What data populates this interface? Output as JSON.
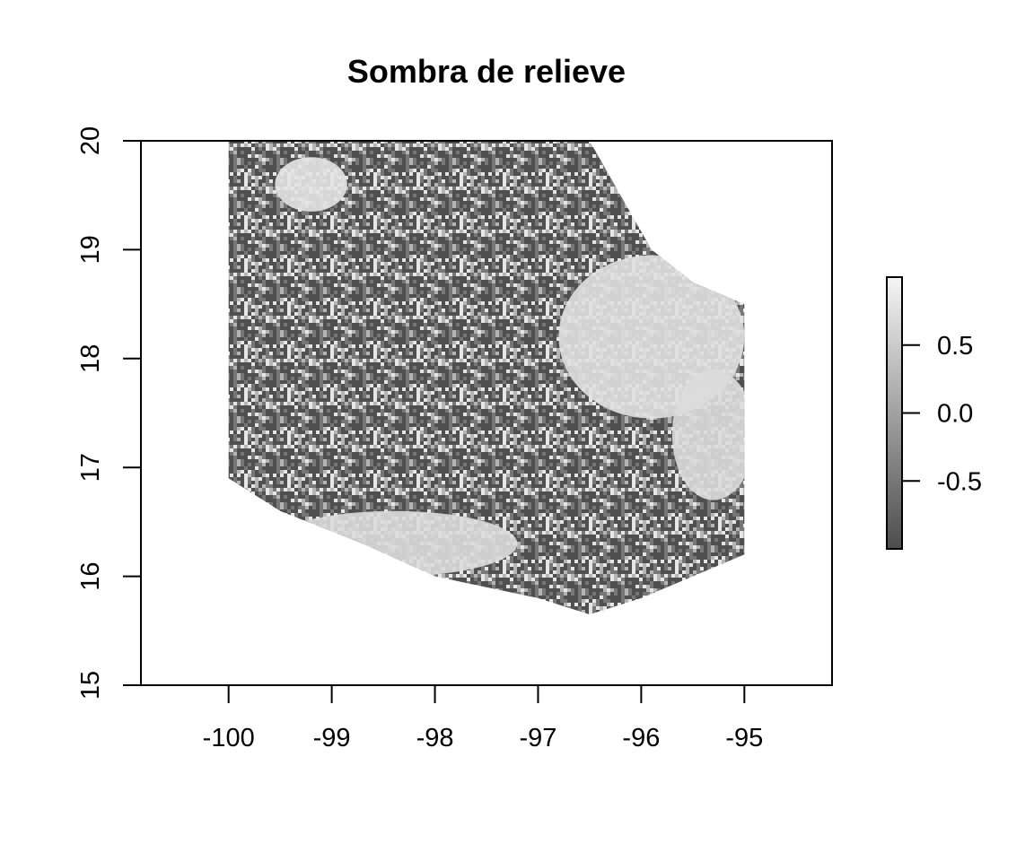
{
  "chart_data": {
    "type": "heatmap",
    "title": "Sombra de relieve",
    "xlabel": "",
    "ylabel": "",
    "xlim": [
      -100.85,
      -94.15
    ],
    "ylim": [
      15,
      20
    ],
    "x_ticks": [
      "-100",
      "-99",
      "-98",
      "-97",
      "-96",
      "-95"
    ],
    "x_tick_values": [
      -100,
      -99,
      -98,
      -97,
      -96,
      -95
    ],
    "y_ticks": [
      "15",
      "16",
      "17",
      "18",
      "19",
      "20"
    ],
    "y_tick_values": [
      15,
      16,
      17,
      18,
      19,
      20
    ],
    "value_range": [
      -1,
      1
    ],
    "colorbar_ticks": [
      "0.5",
      "0.0",
      "-0.5"
    ],
    "colorbar_tick_values": [
      0.5,
      0.0,
      -0.5
    ],
    "colormap": [
      "#4d4d4d",
      "#f5f5f5"
    ],
    "region_outline": [
      [
        -100.0,
        20.0
      ],
      [
        -96.5,
        20.0
      ],
      [
        -96.2,
        19.5
      ],
      [
        -95.9,
        19.0
      ],
      [
        -95.5,
        18.7
      ],
      [
        -95.0,
        18.5
      ],
      [
        -95.0,
        16.2
      ],
      [
        -95.5,
        16.0
      ],
      [
        -96.0,
        15.8
      ],
      [
        -96.5,
        15.65
      ],
      [
        -97.0,
        15.8
      ],
      [
        -98.0,
        16.0
      ],
      [
        -98.7,
        16.3
      ],
      [
        -99.5,
        16.6
      ],
      [
        -100.0,
        16.9
      ]
    ],
    "smooth_zones": [
      {
        "center": [
          -95.9,
          18.2
        ],
        "radius": [
          0.9,
          0.75
        ],
        "value": 0.75
      },
      {
        "center": [
          -95.3,
          17.3
        ],
        "radius": [
          0.4,
          0.6
        ],
        "value": 0.7
      },
      {
        "center": [
          -98.4,
          16.3
        ],
        "radius": [
          1.2,
          0.3
        ],
        "value": 0.7
      },
      {
        "center": [
          -99.2,
          19.6
        ],
        "radius": [
          0.35,
          0.25
        ],
        "value": 0.8
      }
    ]
  }
}
